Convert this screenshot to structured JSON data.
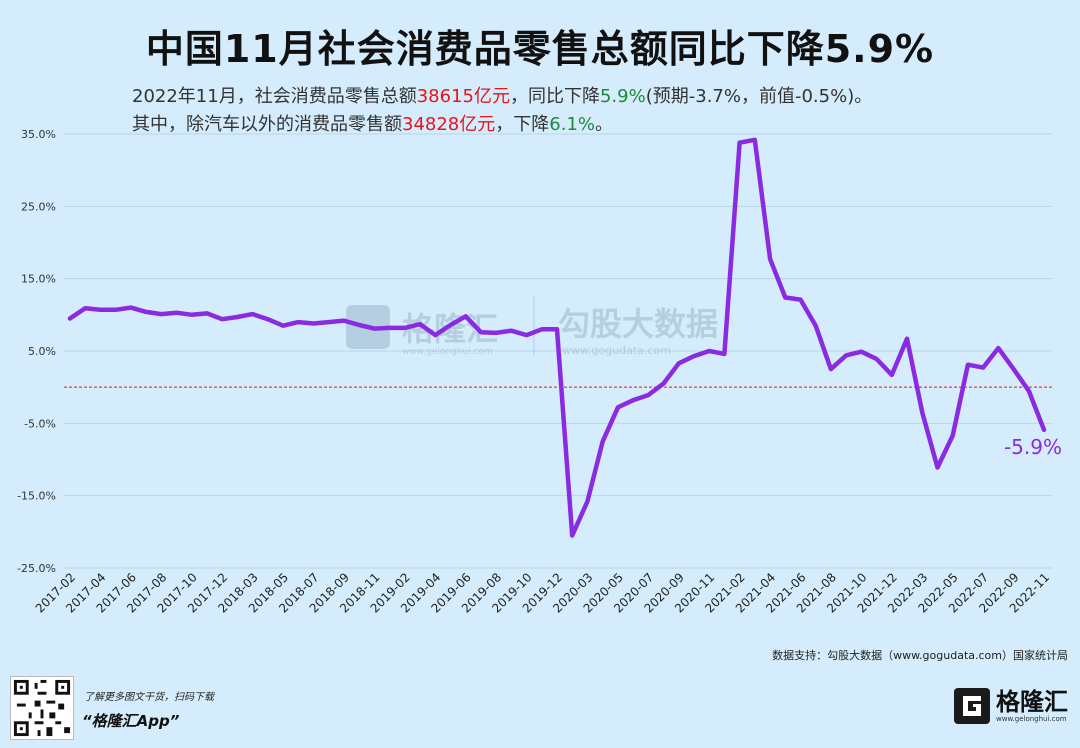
{
  "title": "中国11月社会消费品零售总额同比下降5.9%",
  "subtitle": {
    "line1": {
      "p1": "2022年11月，社会消费品零售总额",
      "v1": "38615亿元",
      "p2": "，同比下降",
      "v2": "5.9%",
      "p3": "(预期-3.7%，前值-0.5%)。"
    },
    "line2": {
      "p1": "其中，除汽车以外的消费品零售额",
      "v1": "34828亿元",
      "p2": "，下降",
      "v2": "6.1%",
      "p3": "。"
    }
  },
  "watermark": {
    "name1": "格隆汇",
    "name2": "勾股大数据",
    "url1": "www.gelonghui.com",
    "url2": "www.gogudata.com"
  },
  "source": "数据支持：勾股大数据（www.gogudata.com）国家统计局",
  "footer": {
    "promo_line1": "了解更多图文干货，扫码下载",
    "promo_line2": "“格隆汇App”",
    "brand_name": "格隆汇",
    "brand_url": "www.gelonghui.com"
  },
  "colors": {
    "line": "#8a2be2",
    "grid": "#b9d6ea",
    "zero_line": "#e8141c",
    "background": "#d4ecfb"
  },
  "chart_data": {
    "type": "line",
    "title": "",
    "xlabel": "",
    "ylabel": "",
    "ylim": [
      -25,
      35
    ],
    "yticks": [
      -25,
      -15,
      -5,
      5,
      15,
      25,
      35
    ],
    "ytick_labels": [
      "-25.0%",
      "-15.0%",
      "-5.0%",
      "5.0%",
      "15.0%",
      "25.0%",
      "35.0%"
    ],
    "xtick_labels": [
      "2017-02",
      "2017-04",
      "2017-06",
      "2017-08",
      "2017-10",
      "2017-12",
      "2018-03",
      "2018-05",
      "2018-07",
      "2018-09",
      "2018-11",
      "2019-02",
      "2019-04",
      "2019-06",
      "2019-08",
      "2019-10",
      "2019-12",
      "2020-03",
      "2020-05",
      "2020-07",
      "2020-09",
      "2020-11",
      "2021-02",
      "2021-04",
      "2021-06",
      "2021-08",
      "2021-10",
      "2021-12",
      "2022-03",
      "2022-05",
      "2022-07",
      "2022-09",
      "2022-11"
    ],
    "reference_line": 0,
    "end_label": "-5.9%",
    "x": [
      "2017-02",
      "2017-03",
      "2017-04",
      "2017-05",
      "2017-06",
      "2017-07",
      "2017-08",
      "2017-09",
      "2017-10",
      "2017-11",
      "2017-12",
      "2018-02",
      "2018-03",
      "2018-04",
      "2018-05",
      "2018-06",
      "2018-07",
      "2018-08",
      "2018-09",
      "2018-10",
      "2018-11",
      "2018-12",
      "2019-02",
      "2019-03",
      "2019-04",
      "2019-05",
      "2019-06",
      "2019-07",
      "2019-08",
      "2019-09",
      "2019-10",
      "2019-11",
      "2019-12",
      "2020-02",
      "2020-03",
      "2020-04",
      "2020-05",
      "2020-06",
      "2020-07",
      "2020-08",
      "2020-09",
      "2020-10",
      "2020-11",
      "2020-12",
      "2021-02",
      "2021-03",
      "2021-04",
      "2021-05",
      "2021-06",
      "2021-07",
      "2021-08",
      "2021-09",
      "2021-10",
      "2021-11",
      "2021-12",
      "2022-02",
      "2022-03",
      "2022-04",
      "2022-05",
      "2022-06",
      "2022-07",
      "2022-08",
      "2022-09",
      "2022-10",
      "2022-11"
    ],
    "series": [
      {
        "values": [
          9.5,
          10.9,
          10.7,
          10.7,
          11.0,
          10.4,
          10.1,
          10.3,
          10.0,
          10.2,
          9.4,
          9.7,
          10.1,
          9.4,
          8.5,
          9.0,
          8.8,
          9.0,
          9.2,
          8.6,
          8.1,
          8.2,
          8.2,
          8.7,
          7.2,
          8.6,
          9.8,
          7.6,
          7.5,
          7.8,
          7.2,
          8.0,
          8.0,
          -20.5,
          -15.8,
          -7.5,
          -2.8,
          -1.8,
          -1.1,
          0.5,
          3.3,
          4.3,
          5.0,
          4.6,
          33.8,
          34.2,
          17.7,
          12.4,
          12.1,
          8.5,
          2.5,
          4.4,
          4.9,
          3.9,
          1.7,
          6.7,
          -3.5,
          -11.1,
          -6.7,
          3.1,
          2.7,
          5.4,
          2.5,
          -0.5,
          -5.9
        ]
      }
    ]
  }
}
